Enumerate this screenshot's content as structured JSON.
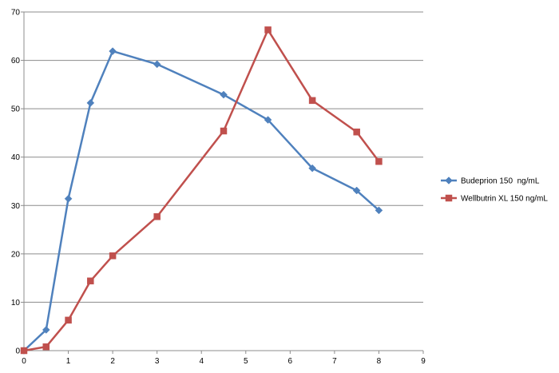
{
  "chart_data": {
    "type": "line",
    "title": "",
    "xlabel": "",
    "ylabel": "",
    "xlim": [
      0,
      9
    ],
    "ylim": [
      0,
      70
    ],
    "xticks": [
      "0",
      "1",
      "2",
      "3",
      "4",
      "5",
      "6",
      "7",
      "8",
      "9"
    ],
    "yticks": [
      "0",
      "10",
      "20",
      "30",
      "40",
      "50",
      "60",
      "70"
    ],
    "grid": "horizontal",
    "legend_position": "right",
    "series": [
      {
        "name": "Budeprion 150  ng/mL",
        "color": "#4F81BD",
        "marker": "diamond",
        "x": [
          0,
          0.5,
          1,
          1.5,
          2,
          3,
          4.5,
          5.5,
          6.5,
          7.5,
          8
        ],
        "y": [
          0,
          4.3,
          31.4,
          51.2,
          61.9,
          59.2,
          52.9,
          47.7,
          37.7,
          33.1,
          29.0
        ]
      },
      {
        "name": "Wellbutrin XL 150 ng/mL",
        "color": "#C0504D",
        "marker": "square",
        "x": [
          0,
          0.5,
          1,
          1.5,
          2,
          3,
          4.5,
          5.5,
          6.5,
          7.5,
          8
        ],
        "y": [
          0,
          0.8,
          6.3,
          14.4,
          19.6,
          27.7,
          45.4,
          66.3,
          51.7,
          45.2,
          39.1
        ]
      }
    ]
  }
}
